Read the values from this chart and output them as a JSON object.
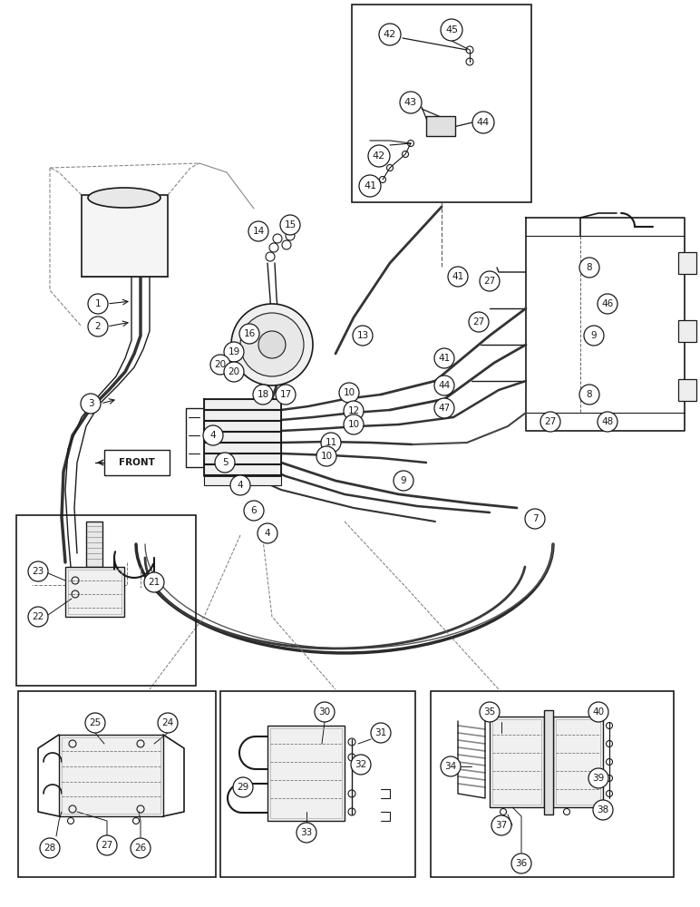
{
  "background_color": "#ffffff",
  "line_color": "#1a1a1a",
  "fig_width": 7.72,
  "fig_height": 10.0,
  "dpi": 100
}
